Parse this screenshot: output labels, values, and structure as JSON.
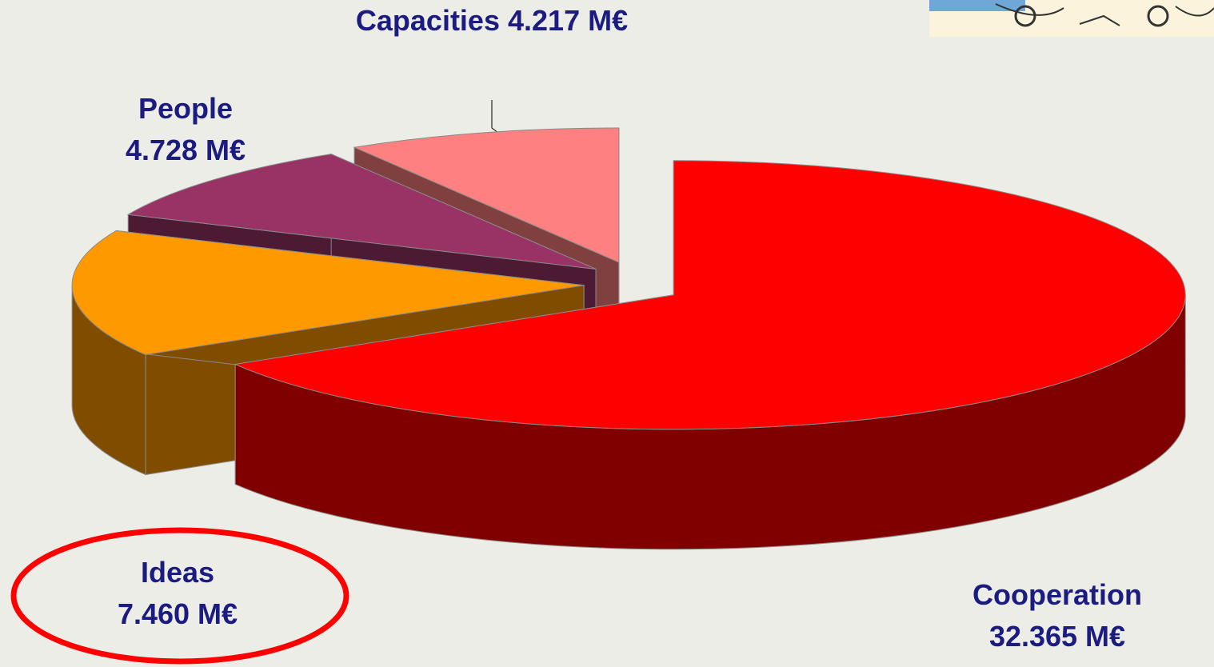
{
  "chart_data": {
    "type": "pie3d",
    "categories": [
      "Cooperation",
      "Ideas",
      "People",
      "Capacities"
    ],
    "values": [
      32.365,
      7.46,
      4.728,
      4.217
    ],
    "value_labels": [
      "32.365 M€",
      "7.460 M€",
      "4.728 M€",
      "4.217 M€"
    ],
    "colors": [
      "#ff0000",
      "#ff9900",
      "#993366",
      "#ff8080"
    ]
  }
}
